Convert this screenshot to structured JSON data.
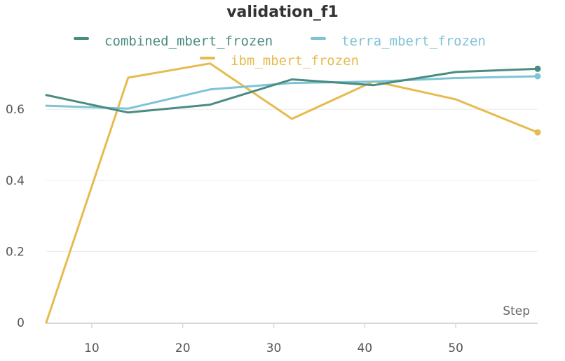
{
  "chart_data": {
    "type": "line",
    "title": "validation_f1",
    "xlabel": "Step",
    "ylabel": "",
    "xlim": [
      5,
      59
    ],
    "ylim": [
      0,
      0.75
    ],
    "x_ticks": [
      10,
      20,
      30,
      40,
      50
    ],
    "y_ticks": [
      0,
      0.2,
      0.4,
      0.6
    ],
    "x_tick_labels": [
      "10",
      "20",
      "30",
      "40",
      "50"
    ],
    "y_tick_labels": [
      "0",
      "0.2",
      "0.4",
      "0.6"
    ],
    "grid": "horizontal",
    "legend_position": "top",
    "series": [
      {
        "name": "combined_mbert_frozen",
        "color": "#4a8c80",
        "x": [
          5,
          14,
          23,
          32,
          41,
          50,
          59
        ],
        "values": [
          0.64,
          0.591,
          0.613,
          0.684,
          0.668,
          0.705,
          0.714
        ]
      },
      {
        "name": "terra_mbert_frozen",
        "color": "#7ec3d6",
        "x": [
          5,
          14,
          23,
          32,
          41,
          50,
          59
        ],
        "values": [
          0.61,
          0.602,
          0.656,
          0.674,
          0.678,
          0.688,
          0.693
        ]
      },
      {
        "name": "ibm_mbert_frozen",
        "color": "#e6bb4f",
        "x": [
          5,
          14,
          23,
          32,
          41,
          50,
          59
        ],
        "values": [
          0.0,
          0.689,
          0.729,
          0.573,
          0.679,
          0.628,
          0.535
        ]
      }
    ]
  }
}
